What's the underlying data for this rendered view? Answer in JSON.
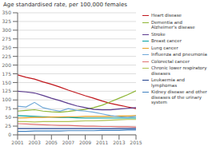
{
  "chart_data": {
    "type": "line",
    "y_label": "Age standardised rate, per 100,000 females",
    "x": [
      2001,
      2002,
      2003,
      2004,
      2005,
      2006,
      2007,
      2008,
      2009,
      2010,
      2011,
      2012,
      2013,
      2014,
      2015
    ],
    "series": [
      {
        "name": "Heart disease",
        "color": "#c0161c",
        "values": [
          172,
          165,
          160,
          152,
          145,
          137,
          128,
          120,
          112,
          105,
          97,
          90,
          85,
          80,
          75
        ]
      },
      {
        "name": "Dementia and\nAlzheimer's disease",
        "color": "#8db533",
        "values": [
          68,
          70,
          72,
          68,
          66,
          65,
          67,
          70,
          73,
          78,
          85,
          95,
          105,
          115,
          126
        ]
      },
      {
        "name": "Stroke",
        "color": "#5b3a8e",
        "values": [
          125,
          123,
          120,
          113,
          105,
          98,
          90,
          83,
          78,
          73,
          72,
          72,
          74,
          76,
          78
        ]
      },
      {
        "name": "Breast cancer",
        "color": "#00a0a0",
        "values": [
          55,
          54,
          53,
          52,
          51,
          50,
          50,
          49,
          48,
          48,
          48,
          48,
          48,
          48,
          48
        ]
      },
      {
        "name": "Lung cancer",
        "color": "#e8a020",
        "values": [
          48,
          49,
          50,
          50,
          51,
          51,
          52,
          52,
          53,
          53,
          53,
          53,
          54,
          54,
          55
        ]
      },
      {
        "name": "Influenza and pneumonia",
        "color": "#6fa8d8",
        "values": [
          82,
          80,
          93,
          78,
          72,
          68,
          75,
          70,
          68,
          65,
          60,
          55,
          52,
          50,
          53
        ]
      },
      {
        "name": "Colorectal cancer",
        "color": "#e07070",
        "values": [
          32,
          31,
          30,
          29,
          28,
          27,
          27,
          26,
          25,
          25,
          24,
          24,
          23,
          23,
          22
        ]
      },
      {
        "name": "Chronic lower respiratory\ndiseases",
        "color": "#b0c050",
        "values": [
          38,
          38,
          37,
          38,
          38,
          38,
          38,
          39,
          40,
          40,
          41,
          42,
          43,
          44,
          44
        ]
      },
      {
        "name": "Leukaemia and\nlymphomas",
        "color": "#20408c",
        "values": [
          18,
          18,
          18,
          18,
          18,
          18,
          18,
          18,
          18,
          18,
          18,
          18,
          18,
          18,
          18
        ]
      },
      {
        "name": "Kidney disease and other\ndiseases of the urinary\nsystem",
        "color": "#4080c0",
        "values": [
          10,
          10,
          11,
          11,
          11,
          11,
          12,
          12,
          12,
          12,
          13,
          13,
          13,
          14,
          14
        ]
      }
    ],
    "xlim": [
      2001,
      2015
    ],
    "xticks": [
      2001,
      2003,
      2005,
      2007,
      2009,
      2011,
      2013,
      2015
    ],
    "ylim": [
      0,
      350
    ],
    "yticks": [
      0,
      25,
      50,
      75,
      100,
      125,
      150,
      175,
      200,
      225,
      250,
      275,
      300,
      325,
      350
    ],
    "grid": true,
    "legend": "upper right"
  }
}
